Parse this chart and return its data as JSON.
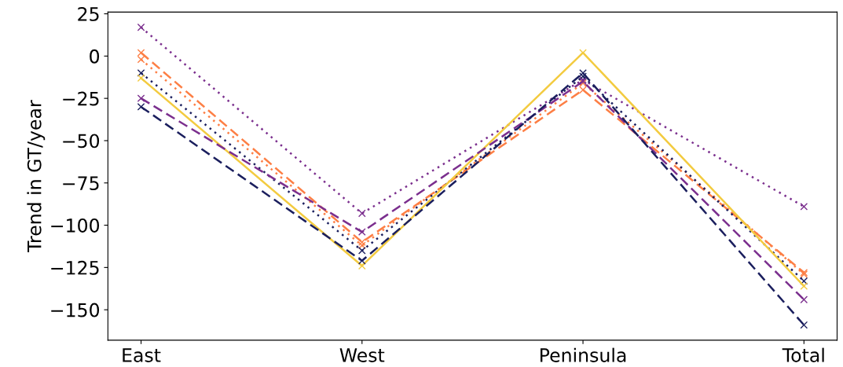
{
  "chart_data": {
    "type": "line",
    "ylabel": "Trend in GT/year",
    "categories": [
      "East",
      "West",
      "Peninsula",
      "Total"
    ],
    "ylim": [
      -168,
      26
    ],
    "yticks": [
      {
        "value": 25,
        "label": "25"
      },
      {
        "value": 0,
        "label": "0"
      },
      {
        "value": -25,
        "label": "−25"
      },
      {
        "value": -50,
        "label": "−50"
      },
      {
        "value": -75,
        "label": "−75"
      },
      {
        "value": -100,
        "label": "−100"
      },
      {
        "value": -125,
        "label": "−125"
      },
      {
        "value": -150,
        "label": "−150"
      }
    ],
    "marker": "cross",
    "grid": false,
    "legend": false,
    "series": [
      {
        "color": "#7b2f8e",
        "line_style": "dotted",
        "values": [
          17,
          -93,
          -14,
          -89
        ]
      },
      {
        "color": "#fd7f45",
        "line_style": "dashed",
        "values": [
          2,
          -110,
          -20,
          -128
        ]
      },
      {
        "color": "#fd7f45",
        "line_style": "dotted",
        "values": [
          -2,
          -112,
          -16,
          -129
        ]
      },
      {
        "color": "#1b1f5e",
        "line_style": "dotted",
        "values": [
          -10,
          -115,
          -12,
          -133
        ]
      },
      {
        "color": "#f3cb40",
        "line_style": "solid",
        "values": [
          -13,
          -124,
          2,
          -136
        ]
      },
      {
        "color": "#7b2f8e",
        "line_style": "dashed",
        "values": [
          -25,
          -104,
          -15,
          -144
        ]
      },
      {
        "color": "#1b1f5e",
        "line_style": "dashed",
        "values": [
          -30,
          -121,
          -10,
          -159
        ]
      }
    ]
  }
}
